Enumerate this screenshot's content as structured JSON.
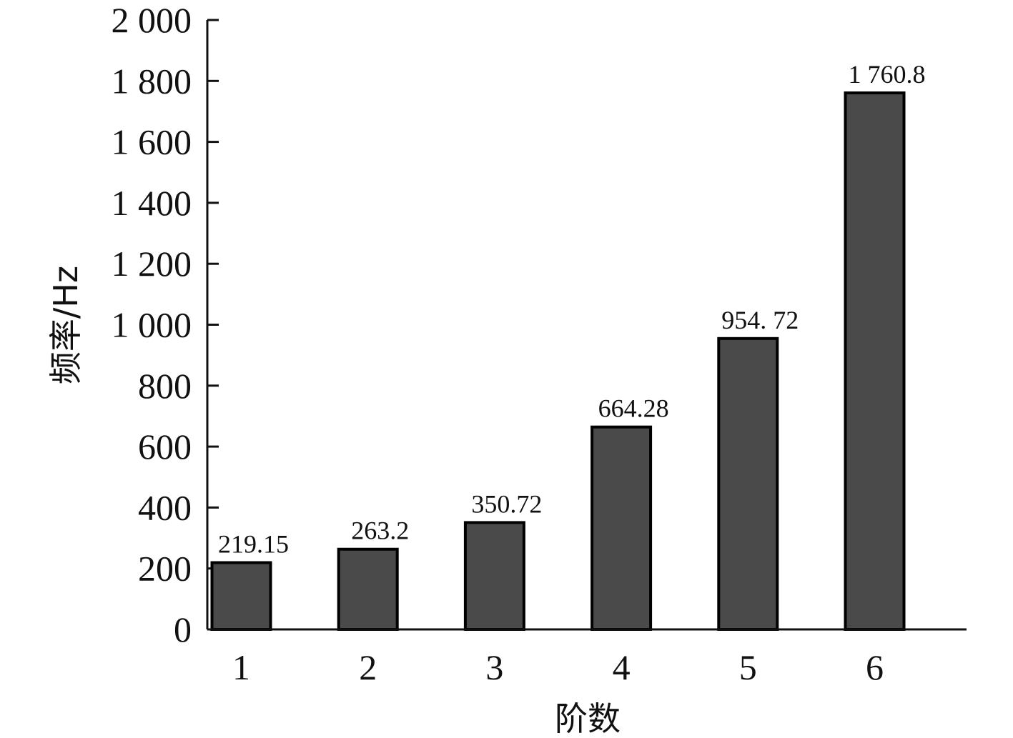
{
  "chart_data": {
    "type": "bar",
    "categories": [
      "1",
      "2",
      "3",
      "4",
      "5",
      "6"
    ],
    "values": [
      219.15,
      263.2,
      350.72,
      664.28,
      954.72,
      1760.8
    ],
    "data_labels": [
      "219.15",
      "263.2",
      "350.72",
      "664.28",
      "954. 72",
      "1 760.8"
    ],
    "xlabel": "阶数",
    "ylabel": "频率/Hz",
    "ylim": [
      0,
      2000
    ],
    "yticks": [
      0,
      200,
      400,
      600,
      800,
      1000,
      1200,
      1400,
      1600,
      1800,
      2000
    ],
    "ytick_labels": [
      "0",
      "200",
      "400",
      "600",
      "800",
      "1 000",
      "1 200",
      "1 400",
      "1 600",
      "1 800",
      "2 000"
    ],
    "bar_color": "#4a4a4a",
    "grid": false,
    "legend": "none"
  }
}
